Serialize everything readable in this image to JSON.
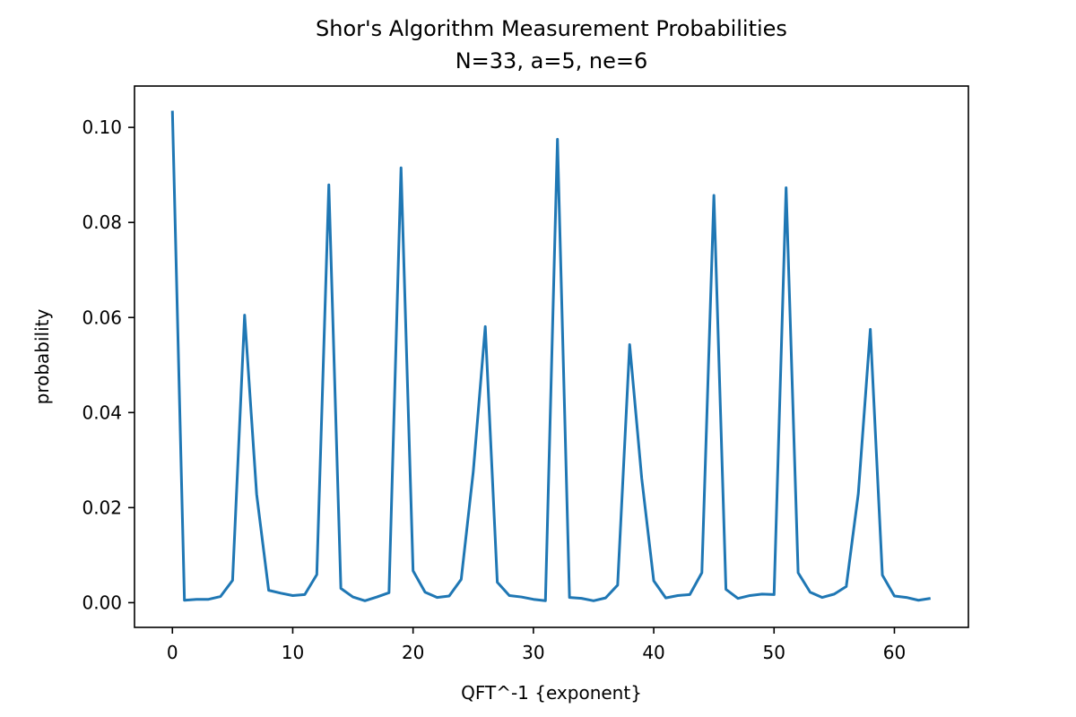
{
  "chart_data": {
    "type": "line",
    "title": "Shor's Algorithm Measurement Probabilities",
    "subtitle": "N=33, a=5, ne=6",
    "xlabel": "QFT^-1 {exponent}",
    "ylabel": "probability",
    "xlim": [
      -3.15,
      66.15
    ],
    "ylim": [
      -0.0052,
      0.1087
    ],
    "xticks": [
      0,
      10,
      20,
      30,
      40,
      50,
      60
    ],
    "xtick_labels": [
      "0",
      "10",
      "20",
      "30",
      "40",
      "50",
      "60"
    ],
    "yticks": [
      0.0,
      0.02,
      0.04,
      0.06,
      0.08,
      0.1
    ],
    "ytick_labels": [
      "0.00",
      "0.02",
      "0.04",
      "0.06",
      "0.08",
      "0.10"
    ],
    "grid": false,
    "series": [
      {
        "color": "#1f77b4",
        "x": [
          0,
          1,
          2,
          3,
          4,
          5,
          6,
          7,
          8,
          9,
          10,
          11,
          12,
          13,
          14,
          15,
          16,
          17,
          18,
          19,
          20,
          21,
          22,
          23,
          24,
          25,
          26,
          27,
          28,
          29,
          30,
          31,
          32,
          33,
          34,
          35,
          36,
          37,
          38,
          39,
          40,
          41,
          42,
          43,
          44,
          45,
          46,
          47,
          48,
          49,
          50,
          51,
          52,
          53,
          54,
          55,
          56,
          57,
          58,
          59,
          60,
          61,
          62,
          63
        ],
        "values": [
          0.1035,
          0.0005,
          0.0007,
          0.0007,
          0.0013,
          0.0047,
          0.0605,
          0.0228,
          0.0026,
          0.002,
          0.0015,
          0.0017,
          0.0059,
          0.0879,
          0.003,
          0.0012,
          0.0004,
          0.0012,
          0.0021,
          0.0915,
          0.0067,
          0.0022,
          0.0011,
          0.0014,
          0.0049,
          0.0275,
          0.0581,
          0.0043,
          0.0015,
          0.0012,
          0.0007,
          0.0004,
          0.0975,
          0.0011,
          0.0009,
          0.0004,
          0.001,
          0.0037,
          0.0543,
          0.0262,
          0.0046,
          0.001,
          0.0015,
          0.0017,
          0.0063,
          0.0857,
          0.0028,
          0.0009,
          0.0015,
          0.0018,
          0.0017,
          0.0873,
          0.0063,
          0.0022,
          0.0011,
          0.0018,
          0.0034,
          0.0229,
          0.0575,
          0.0058,
          0.0014,
          0.0011,
          0.0005,
          0.0009
        ]
      }
    ]
  }
}
